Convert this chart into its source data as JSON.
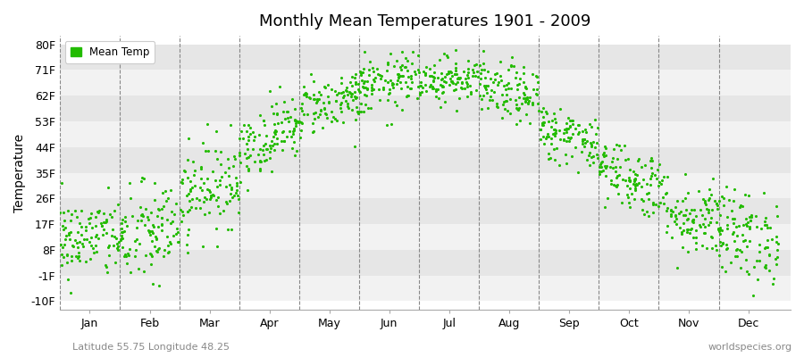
{
  "title": "Monthly Mean Temperatures 1901 - 2009",
  "ylabel": "Temperature",
  "xlabel_bottom": "Latitude 55.75 Longitude 48.25",
  "xlabel_right": "worldspecies.org",
  "legend_label": "Mean Temp",
  "dot_color": "#22bb00",
  "background_color": "#ffffff",
  "plot_bg_color": "#ffffff",
  "band_color_light": "#f2f2f2",
  "band_color_dark": "#e6e6e6",
  "ytick_labels": [
    "-10F",
    "-1F",
    "8F",
    "17F",
    "26F",
    "35F",
    "44F",
    "53F",
    "62F",
    "71F",
    "80F"
  ],
  "ytick_values": [
    -10,
    -1,
    8,
    17,
    26,
    35,
    44,
    53,
    62,
    71,
    80
  ],
  "ylim": [
    -13,
    83
  ],
  "months": [
    "Jan",
    "Feb",
    "Mar",
    "Apr",
    "May",
    "Jun",
    "Jul",
    "Aug",
    "Sep",
    "Oct",
    "Nov",
    "Dec"
  ],
  "month_centers": [
    1,
    2,
    3,
    4,
    5,
    6,
    7,
    8,
    9,
    10,
    11,
    12
  ],
  "month_means_F": [
    12,
    12,
    26,
    44,
    57,
    65,
    68,
    65,
    51,
    37,
    23,
    14
  ],
  "month_stds_F": [
    7,
    9,
    8,
    6,
    5,
    5,
    4,
    5,
    5,
    6,
    7,
    8
  ],
  "n_years": 109,
  "seed": 42,
  "dot_size": 5
}
